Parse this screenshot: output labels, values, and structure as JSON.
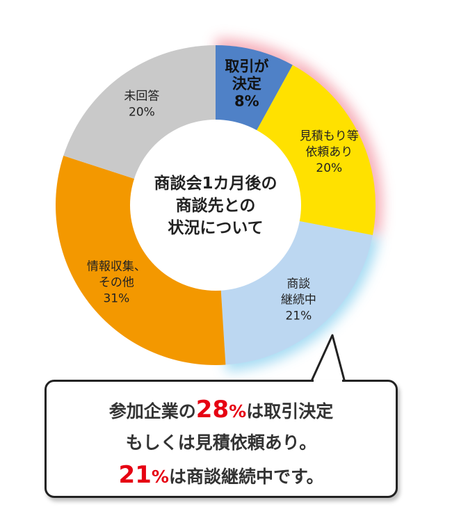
{
  "chart_data": {
    "type": "pie",
    "title": "商談会1カ月後の商談先との状況について",
    "title_lines": [
      "商談会1カ月後の",
      "商談先との",
      "状況について"
    ],
    "unit": "%",
    "donut": true,
    "slices": [
      {
        "label_lines": [
          "取引が",
          "決定"
        ],
        "value": 8,
        "value_label": "8%",
        "color": "#4f81c7",
        "text_color": "#111111",
        "bold": true,
        "highlight": "#f5a7b3"
      },
      {
        "label_lines": [
          "見積もり等",
          "依頼あり"
        ],
        "value": 20,
        "value_label": "20%",
        "color": "#ffe100",
        "text_color": "#222222",
        "bold": false,
        "highlight": "#f5a7b3"
      },
      {
        "label_lines": [
          "商談",
          "継続中"
        ],
        "value": 21,
        "value_label": "21%",
        "color": "#bcd7f1",
        "text_color": "#222222",
        "bold": false,
        "highlight": "#9ed8f2"
      },
      {
        "label_lines": [
          "情報収集、",
          "その他"
        ],
        "value": 31,
        "value_label": "31%",
        "color": "#f39800",
        "text_color": "#222222",
        "bold": false,
        "highlight": null
      },
      {
        "label_lines": [
          "未回答"
        ],
        "value": 20,
        "value_label": "20%",
        "color": "#c9c9c9",
        "text_color": "#222222",
        "bold": false,
        "highlight": null
      }
    ]
  },
  "callout": {
    "line1_a": "参加企業の",
    "line1_num": "28",
    "line1_pct": "%",
    "line1_b": "は取引決定",
    "line2": "もしくは見積依頼あり。",
    "line3_num": "21",
    "line3_pct": "%",
    "line3_b": "は商談継続中です。"
  },
  "colors": {
    "accent": "#e60012",
    "border": "#222222",
    "text": "#333333"
  }
}
